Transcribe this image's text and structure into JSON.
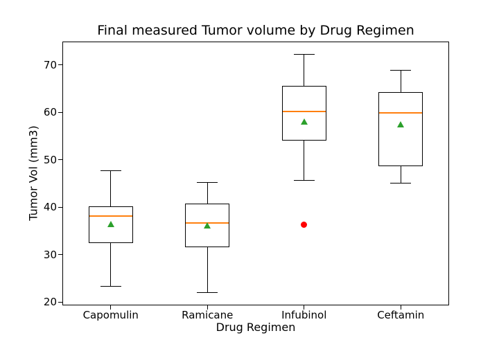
{
  "chart_data": {
    "type": "boxplot",
    "title": "Final measured Tumor volume by Drug Regimen",
    "xlabel": "Drug Regimen",
    "ylabel": "Tumor Vol (mm3)",
    "ylim": [
      19.3,
      74.9
    ],
    "yticks": [
      20,
      30,
      40,
      50,
      60,
      70
    ],
    "grid": false,
    "legend_position": "none",
    "categories": [
      "Capomulin",
      "Ramicane",
      "Infubinol",
      "Ceftamin"
    ],
    "series": [
      {
        "name": "Capomulin",
        "whisker_low": 23.3,
        "q1": 32.4,
        "median": 38.1,
        "q3": 40.2,
        "whisker_high": 47.7,
        "mean": 36.5,
        "outliers": []
      },
      {
        "name": "Ramicane",
        "whisker_low": 22.0,
        "q1": 31.6,
        "median": 36.6,
        "q3": 40.7,
        "whisker_high": 45.2,
        "mean": 36.2,
        "outliers": []
      },
      {
        "name": "Infubinol",
        "whisker_low": 45.6,
        "q1": 54.0,
        "median": 60.2,
        "q3": 65.5,
        "whisker_high": 72.2,
        "mean": 58.0,
        "outliers": [
          36.3
        ]
      },
      {
        "name": "Ceftamin",
        "whisker_low": 45.0,
        "q1": 48.7,
        "median": 59.9,
        "q3": 64.3,
        "whisker_high": 68.9,
        "mean": 57.5,
        "outliers": []
      }
    ],
    "colors": {
      "box_line": "#000000",
      "median": "#ff7f0e",
      "mean_marker": "#2ca02c",
      "outlier": "#ff0000",
      "background": "#ffffff",
      "text": "#000000"
    }
  }
}
